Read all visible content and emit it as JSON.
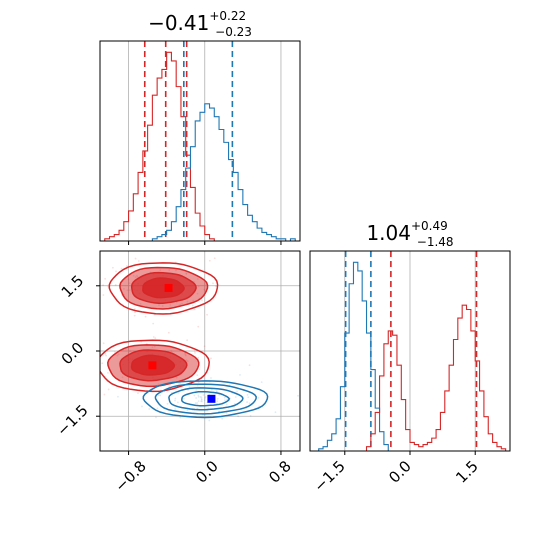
{
  "titles": {
    "param1": {
      "median": "−0.41",
      "plus": "+0.22",
      "minus": "−0.23"
    },
    "param2": {
      "median": "1.04",
      "plus": "+0.49",
      "minus": "−1.48"
    }
  },
  "colors": {
    "red": "#d62728",
    "blue": "#1f77b4",
    "red_marker": "#ff0000",
    "blue_marker": "#0000ff"
  },
  "chart_data": [
    {
      "type": "histogram",
      "panel": "top-left",
      "xlim": [
        -1.1,
        1.0
      ],
      "grid": true,
      "series": [
        {
          "color": "red",
          "bins": [
            -1.1,
            -1.05,
            -1.0,
            -0.95,
            -0.9,
            -0.85,
            -0.8,
            -0.75,
            -0.7,
            -0.65,
            -0.6,
            -0.55,
            -0.5,
            -0.45,
            -0.4,
            -0.35,
            -0.3,
            -0.25,
            -0.2,
            -0.15,
            -0.1,
            -0.05,
            0.0,
            0.05,
            0.1
          ],
          "values": [
            0,
            1,
            2,
            3,
            5,
            9,
            14,
            22,
            32,
            42,
            54,
            68,
            76,
            80,
            88,
            84,
            72,
            58,
            40,
            25,
            13,
            7,
            3,
            1,
            0
          ],
          "quantile_lines": [
            -0.63,
            -0.41,
            -0.19
          ]
        },
        {
          "color": "blue",
          "bins": [
            -0.6,
            -0.55,
            -0.5,
            -0.45,
            -0.4,
            -0.35,
            -0.3,
            -0.25,
            -0.2,
            -0.15,
            -0.1,
            -0.05,
            0.0,
            0.05,
            0.1,
            0.15,
            0.2,
            0.25,
            0.3,
            0.35,
            0.4,
            0.45,
            0.5,
            0.55,
            0.6,
            0.65,
            0.7,
            0.75,
            0.8,
            0.85,
            0.9,
            0.95
          ],
          "values": [
            0,
            1,
            2,
            3,
            5,
            9,
            16,
            24,
            34,
            44,
            56,
            60,
            64,
            62,
            58,
            52,
            46,
            38,
            32,
            24,
            17,
            12,
            9,
            6,
            4,
            3,
            2,
            1,
            1,
            0,
            1,
            0
          ],
          "quantile_lines": [
            -0.22,
            0.29
          ]
        }
      ]
    },
    {
      "type": "contour",
      "panel": "bottom-left",
      "xlim": [
        -1.1,
        1.0
      ],
      "ylim": [
        -2.3,
        2.3
      ],
      "xticks": [
        "−0.8",
        "0.0",
        "0.8"
      ],
      "yticks": [
        "1.5",
        "0.0",
        "−1.5"
      ],
      "grid": true,
      "series": [
        {
          "color": "red",
          "filled": true,
          "blobs": [
            {
              "center": [
                -0.44,
                1.45
              ],
              "sx": 0.27,
              "sy": 0.28
            },
            {
              "center": [
                -0.55,
                -0.33
              ],
              "sx": 0.28,
              "sy": 0.28
            }
          ],
          "markers": [
            [
              -0.38,
              1.45
            ],
            [
              -0.55,
              -0.33
            ]
          ]
        },
        {
          "color": "blue",
          "filled": false,
          "blobs": [
            {
              "center": [
                0.0,
                -1.1
              ],
              "sx": 0.31,
              "sy": 0.2
            }
          ],
          "markers": [
            [
              0.07,
              -1.1
            ]
          ]
        }
      ]
    },
    {
      "type": "histogram",
      "panel": "bottom-right",
      "xlim": [
        -2.3,
        2.3
      ],
      "xticks": [
        "−1.5",
        "0.0",
        "1.5"
      ],
      "grid": true,
      "series": [
        {
          "color": "blue",
          "bins": [
            -2.2,
            -2.1,
            -2.0,
            -1.9,
            -1.8,
            -1.7,
            -1.6,
            -1.5,
            -1.4,
            -1.3,
            -1.2,
            -1.1,
            -1.0,
            -0.9,
            -0.8,
            -0.7,
            -0.6,
            -0.5
          ],
          "values": [
            0,
            1,
            2,
            5,
            8,
            15,
            30,
            55,
            78,
            88,
            84,
            70,
            55,
            38,
            20,
            9,
            3,
            0
          ],
          "quantile_lines": [
            -1.48,
            -0.9
          ]
        },
        {
          "color": "red",
          "bins": [
            -1.0,
            -0.9,
            -0.8,
            -0.7,
            -0.6,
            -0.5,
            -0.4,
            -0.3,
            -0.2,
            -0.1,
            0.0,
            0.1,
            0.2,
            0.3,
            0.4,
            0.5,
            0.6,
            0.7,
            0.8,
            0.9,
            1.0,
            1.1,
            1.2,
            1.3,
            1.4,
            1.5,
            1.6,
            1.7,
            1.8,
            1.9,
            2.0,
            2.1
          ],
          "values": [
            2,
            8,
            18,
            35,
            50,
            56,
            54,
            40,
            24,
            10,
            4,
            3,
            2,
            3,
            4,
            6,
            10,
            18,
            28,
            40,
            52,
            62,
            68,
            66,
            56,
            42,
            28,
            16,
            8,
            4,
            2,
            1
          ],
          "quantile_lines": [
            -0.44,
            1.53
          ]
        }
      ]
    }
  ]
}
